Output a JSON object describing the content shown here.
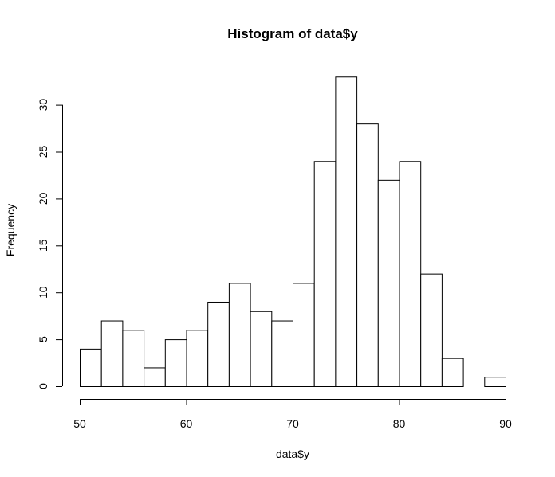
{
  "chart_data": {
    "type": "bar",
    "title": "Histogram of data$y",
    "xlabel": "data$y",
    "ylabel": "Frequency",
    "bin_width": 2,
    "bin_edges": [
      50,
      52,
      54,
      56,
      58,
      60,
      62,
      64,
      66,
      68,
      70,
      72,
      74,
      76,
      78,
      80,
      82,
      84,
      86,
      88,
      90
    ],
    "values": [
      4,
      7,
      6,
      2,
      5,
      6,
      9,
      11,
      8,
      7,
      11,
      24,
      33,
      28,
      22,
      24,
      12,
      3,
      0,
      1
    ],
    "xlim": [
      50,
      90
    ],
    "ylim": [
      0,
      33
    ],
    "xticks": [
      50,
      60,
      70,
      80,
      90
    ],
    "yticks": [
      0,
      5,
      10,
      15,
      20,
      25,
      30
    ],
    "grid": false,
    "legend": "none",
    "colors": {
      "bar_fill": "#ffffff",
      "bar_stroke": "#000000"
    }
  }
}
